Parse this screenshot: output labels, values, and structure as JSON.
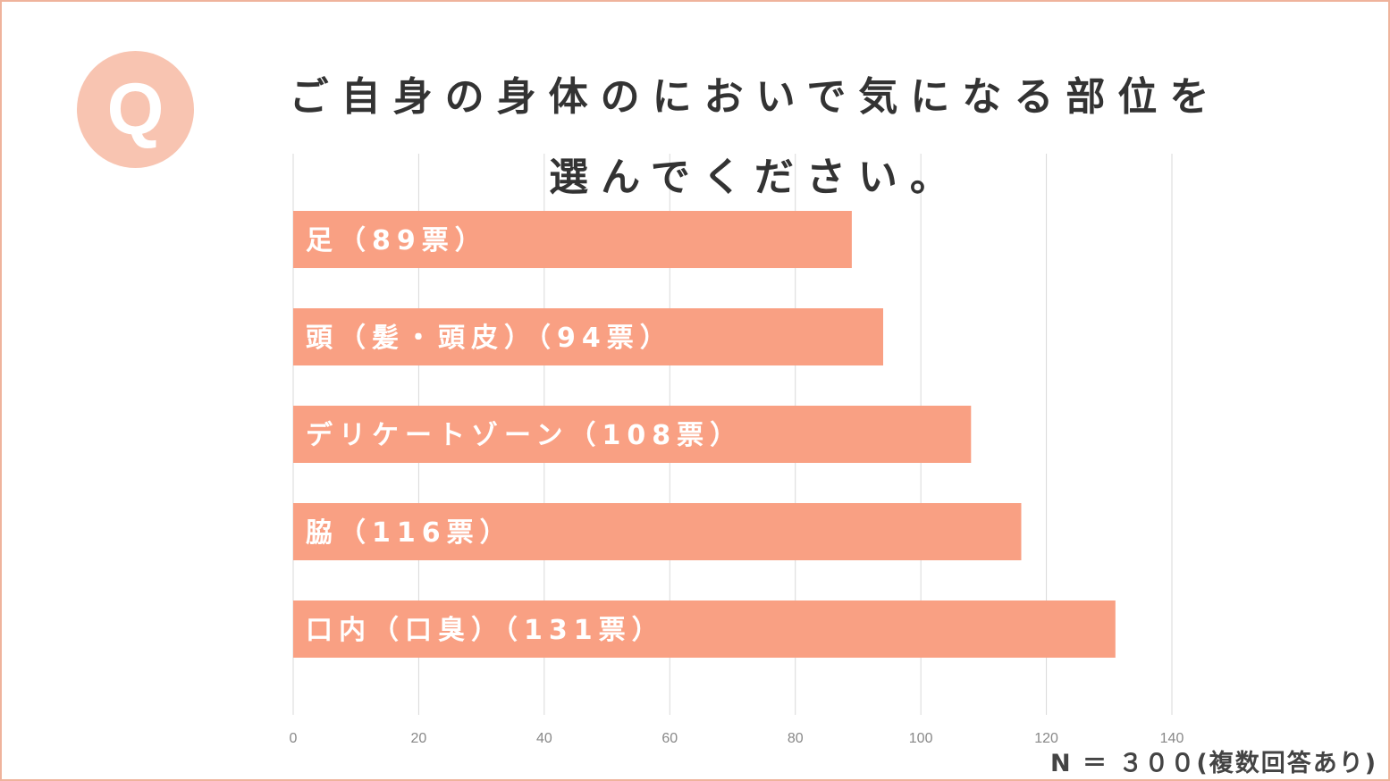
{
  "title_lines": [
    "ご自身の身体のにおいで気になる部位を",
    "選んでください。"
  ],
  "q_badge": "Q",
  "note": "N ＝ ３００(複数回答あり)",
  "colors": {
    "bar": "#f9a083",
    "badge": "#f8c4b1",
    "frame": "#efb39c",
    "grid": "#d9d9d9"
  },
  "chart_data": {
    "type": "bar",
    "orientation": "horizontal",
    "categories": [
      "足",
      "頭（髪・頭皮）",
      "デリケートゾーン",
      "脇",
      "口内（口臭）"
    ],
    "bar_labels": [
      "足（89票）",
      "頭（髪・頭皮）（94票）",
      "デリケートゾーン（108票）",
      "脇（116票）",
      "口内（口臭）（131票）"
    ],
    "values": [
      89,
      94,
      108,
      116,
      131
    ],
    "xlim": [
      0,
      140
    ],
    "xticks": [
      "0",
      "20",
      "40",
      "60",
      "80",
      "100",
      "120",
      "140"
    ],
    "grid": true
  }
}
